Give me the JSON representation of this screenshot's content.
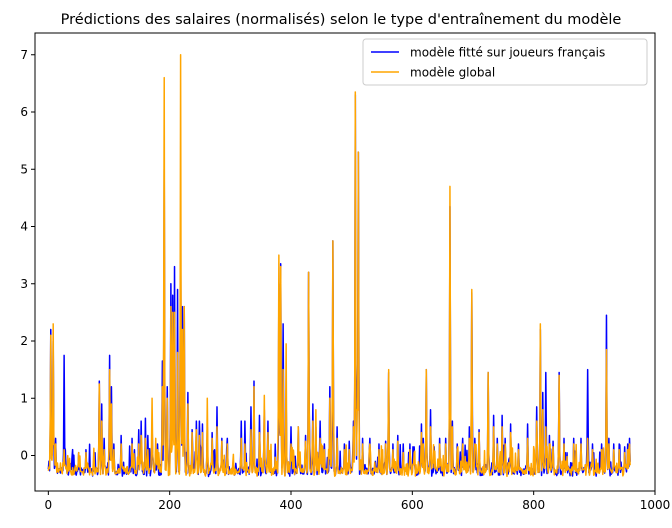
{
  "chart_data": {
    "type": "line",
    "title": "Prédictions des salaires (normalisés) selon le type d'entraînement du modèle",
    "xlabel": "",
    "ylabel": "",
    "xlim": [
      -22,
      1000
    ],
    "ylim": [
      -0.62,
      7.38
    ],
    "xticks": [
      0,
      200,
      400,
      600,
      800,
      1000
    ],
    "yticks": [
      0,
      1,
      2,
      3,
      4,
      5,
      6,
      7
    ],
    "grid": false,
    "legend_position": "top-right",
    "baseline": -0.3,
    "n_points": 960,
    "series": [
      {
        "name": "modèle fitté sur joueurs français",
        "color": "#0000ff",
        "peaks": [
          [
            1,
            -0.1
          ],
          [
            4,
            2.2
          ],
          [
            8,
            2.0
          ],
          [
            12,
            0.3
          ],
          [
            26,
            1.75
          ],
          [
            28,
            0.1
          ],
          [
            35,
            -0.1
          ],
          [
            50,
            0.05
          ],
          [
            62,
            0.1
          ],
          [
            84,
            1.3
          ],
          [
            88,
            0.9
          ],
          [
            92,
            0.3
          ],
          [
            101,
            1.75
          ],
          [
            104,
            1.2
          ],
          [
            108,
            0.2
          ],
          [
            120,
            0.35
          ],
          [
            138,
            0.3
          ],
          [
            149,
            0.45
          ],
          [
            153,
            0.6
          ],
          [
            160,
            0.65
          ],
          [
            164,
            0.35
          ],
          [
            171,
            0.55
          ],
          [
            180,
            0.2
          ],
          [
            188,
            1.65
          ],
          [
            191,
            5.0
          ],
          [
            196,
            1.2
          ],
          [
            202,
            3.0
          ],
          [
            205,
            2.8
          ],
          [
            208,
            3.3
          ],
          [
            213,
            2.9
          ],
          [
            218,
            3.9
          ],
          [
            221,
            2.6
          ],
          [
            224,
            2.6
          ],
          [
            230,
            1.1
          ],
          [
            237,
            0.45
          ],
          [
            244,
            0.6
          ],
          [
            249,
            0.6
          ],
          [
            254,
            0.55
          ],
          [
            262,
            0.5
          ],
          [
            270,
            0.4
          ],
          [
            278,
            0.85
          ],
          [
            286,
            0.3
          ],
          [
            295,
            0.3
          ],
          [
            318,
            0.6
          ],
          [
            324,
            0.6
          ],
          [
            334,
            0.85
          ],
          [
            339,
            1.3
          ],
          [
            348,
            0.7
          ],
          [
            356,
            0.8
          ],
          [
            362,
            0.6
          ],
          [
            380,
            3.0
          ],
          [
            383,
            3.35
          ],
          [
            387,
            2.3
          ],
          [
            392,
            1.0
          ],
          [
            400,
            0.5
          ],
          [
            412,
            0.5
          ],
          [
            424,
            0.35
          ],
          [
            429,
            3.2
          ],
          [
            436,
            0.9
          ],
          [
            441,
            0.5
          ],
          [
            448,
            0.6
          ],
          [
            455,
            0.2
          ],
          [
            464,
            1.2
          ],
          [
            469,
            3.75
          ],
          [
            476,
            0.5
          ],
          [
            488,
            0.2
          ],
          [
            496,
            0.25
          ],
          [
            503,
            0.6
          ],
          [
            506,
            6.3
          ],
          [
            509,
            1.05
          ],
          [
            511,
            5.3
          ],
          [
            518,
            0.3
          ],
          [
            530,
            0.3
          ],
          [
            545,
            0.2
          ],
          [
            556,
            0.25
          ],
          [
            561,
            1.45
          ],
          [
            568,
            0.2
          ],
          [
            576,
            0.35
          ],
          [
            585,
            0.2
          ],
          [
            596,
            0.2
          ],
          [
            603,
            0.15
          ],
          [
            615,
            0.55
          ],
          [
            618,
            0.3
          ],
          [
            623,
            1.5
          ],
          [
            630,
            0.8
          ],
          [
            645,
            0.3
          ],
          [
            655,
            0.3
          ],
          [
            662,
            4.35
          ],
          [
            666,
            0.6
          ],
          [
            674,
            0.2
          ],
          [
            683,
            0.3
          ],
          [
            694,
            0.5
          ],
          [
            698,
            2.85
          ],
          [
            703,
            0.3
          ],
          [
            710,
            0.45
          ],
          [
            725,
            1.45
          ],
          [
            734,
            0.7
          ],
          [
            740,
            0.3
          ],
          [
            748,
            0.7
          ],
          [
            753,
            0.3
          ],
          [
            762,
            0.55
          ],
          [
            775,
            0.2
          ],
          [
            790,
            0.55
          ],
          [
            805,
            0.85
          ],
          [
            811,
            2.2
          ],
          [
            815,
            1.1
          ],
          [
            820,
            1.45
          ],
          [
            826,
            0.35
          ],
          [
            832,
            0.25
          ],
          [
            842,
            1.45
          ],
          [
            850,
            0.3
          ],
          [
            866,
            0.3
          ],
          [
            878,
            0.3
          ],
          [
            889,
            1.5
          ],
          [
            897,
            0.2
          ],
          [
            912,
            0.2
          ],
          [
            920,
            2.45
          ],
          [
            924,
            0.3
          ],
          [
            932,
            0.2
          ],
          [
            941,
            0.2
          ],
          [
            950,
            0.15
          ],
          [
            955,
            0.2
          ],
          [
            958,
            0.3
          ]
        ]
      },
      {
        "name": "modèle global",
        "color": "#ffa500",
        "peaks": [
          [
            1,
            -0.2
          ],
          [
            4,
            2.1
          ],
          [
            8,
            2.3
          ],
          [
            12,
            0.2
          ],
          [
            26,
            0.1
          ],
          [
            35,
            -0.05
          ],
          [
            50,
            0.05
          ],
          [
            62,
            0.05
          ],
          [
            84,
            1.25
          ],
          [
            88,
            0.6
          ],
          [
            92,
            0.1
          ],
          [
            101,
            1.5
          ],
          [
            104,
            0.9
          ],
          [
            108,
            0.1
          ],
          [
            120,
            0.2
          ],
          [
            138,
            0.2
          ],
          [
            149,
            0.2
          ],
          [
            153,
            0.35
          ],
          [
            160,
            0.3
          ],
          [
            164,
            0.1
          ],
          [
            171,
            1.0
          ],
          [
            177,
            0.3
          ],
          [
            180,
            0.1
          ],
          [
            188,
            1.2
          ],
          [
            191,
            6.6
          ],
          [
            196,
            1.0
          ],
          [
            202,
            2.6
          ],
          [
            205,
            2.5
          ],
          [
            208,
            2.5
          ],
          [
            213,
            1.8
          ],
          [
            218,
            7.0
          ],
          [
            221,
            2.2
          ],
          [
            224,
            2.6
          ],
          [
            230,
            0.9
          ],
          [
            237,
            0.4
          ],
          [
            244,
            0.45
          ],
          [
            249,
            0.35
          ],
          [
            254,
            0.4
          ],
          [
            262,
            1.0
          ],
          [
            270,
            0.3
          ],
          [
            278,
            0.5
          ],
          [
            286,
            0.25
          ],
          [
            295,
            0.2
          ],
          [
            318,
            0.3
          ],
          [
            324,
            0.2
          ],
          [
            334,
            0.45
          ],
          [
            339,
            1.2
          ],
          [
            348,
            0.4
          ],
          [
            356,
            1.05
          ],
          [
            362,
            0.4
          ],
          [
            380,
            3.5
          ],
          [
            383,
            3.3
          ],
          [
            387,
            1.5
          ],
          [
            392,
            1.95
          ],
          [
            400,
            0.2
          ],
          [
            412,
            0.5
          ],
          [
            424,
            0.25
          ],
          [
            429,
            3.2
          ],
          [
            436,
            0.6
          ],
          [
            441,
            0.8
          ],
          [
            448,
            0.3
          ],
          [
            455,
            0.1
          ],
          [
            464,
            1.0
          ],
          [
            469,
            3.75
          ],
          [
            476,
            0.3
          ],
          [
            488,
            0.1
          ],
          [
            496,
            0.1
          ],
          [
            503,
            0.5
          ],
          [
            506,
            6.35
          ],
          [
            509,
            0.8
          ],
          [
            511,
            5.3
          ],
          [
            518,
            0.2
          ],
          [
            530,
            0.2
          ],
          [
            545,
            0.1
          ],
          [
            556,
            0.2
          ],
          [
            561,
            1.5
          ],
          [
            568,
            0.1
          ],
          [
            576,
            0.25
          ],
          [
            585,
            0.05
          ],
          [
            596,
            0.1
          ],
          [
            603,
            0.05
          ],
          [
            615,
            0.4
          ],
          [
            618,
            0.2
          ],
          [
            623,
            1.5
          ],
          [
            630,
            0.5
          ],
          [
            645,
            0.2
          ],
          [
            655,
            0.2
          ],
          [
            662,
            4.7
          ],
          [
            666,
            0.5
          ],
          [
            674,
            0.1
          ],
          [
            683,
            0.2
          ],
          [
            694,
            0.3
          ],
          [
            698,
            2.9
          ],
          [
            703,
            0.2
          ],
          [
            710,
            0.4
          ],
          [
            725,
            1.45
          ],
          [
            734,
            0.5
          ],
          [
            740,
            0.2
          ],
          [
            748,
            0.5
          ],
          [
            753,
            0.2
          ],
          [
            762,
            0.4
          ],
          [
            775,
            0.1
          ],
          [
            790,
            0.3
          ],
          [
            805,
            0.6
          ],
          [
            811,
            2.3
          ],
          [
            815,
            0.8
          ],
          [
            820,
            0.5
          ],
          [
            826,
            0.2
          ],
          [
            832,
            0.15
          ],
          [
            842,
            1.4
          ],
          [
            850,
            0.2
          ],
          [
            866,
            0.2
          ],
          [
            878,
            0.2
          ],
          [
            889,
            0.3
          ],
          [
            897,
            0.1
          ],
          [
            912,
            0.1
          ],
          [
            920,
            1.85
          ],
          [
            924,
            0.2
          ],
          [
            932,
            0.1
          ],
          [
            941,
            0.1
          ],
          [
            950,
            0.05
          ],
          [
            955,
            0.1
          ],
          [
            958,
            0.2
          ]
        ]
      }
    ]
  }
}
